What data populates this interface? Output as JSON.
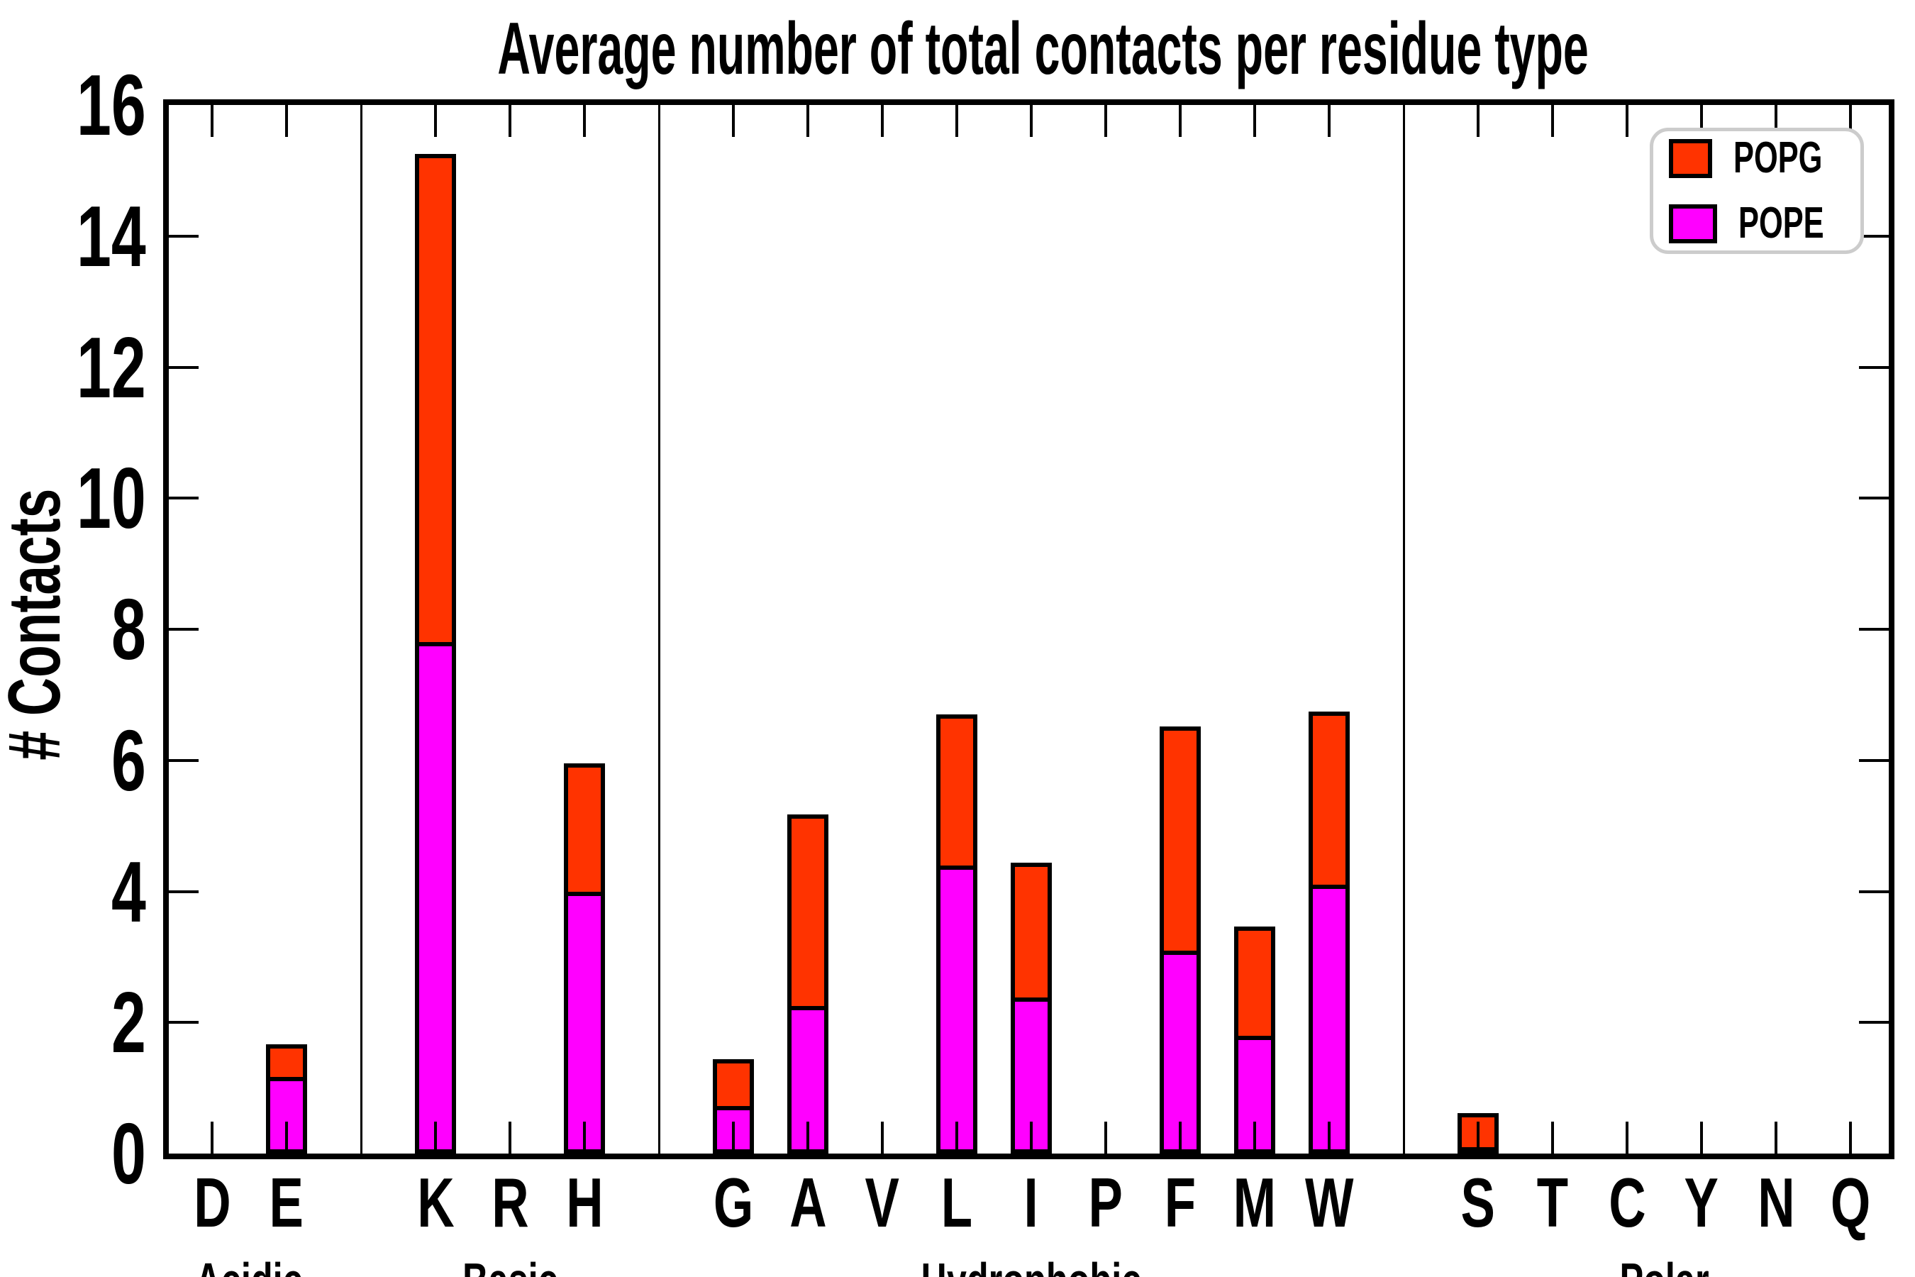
{
  "title": "Average number of total contacts per residue type",
  "ylabel": "# Contacts",
  "legend": {
    "entries": [
      {
        "label": "POPG",
        "color": "#ff3300"
      },
      {
        "label": "POPE",
        "color": "#ff00ff"
      }
    ],
    "position": "upper right"
  },
  "colors": {
    "popg_red": "#ff3300",
    "pope_magenta": "#ff00ff",
    "axis_black": "#000000",
    "legend_border_gray": "#cccccc",
    "background": "#ffffff"
  },
  "yticks": [
    "0",
    "2",
    "4",
    "6",
    "8",
    "10",
    "12",
    "14",
    "16"
  ],
  "chart_data": {
    "type": "bar",
    "stacked": true,
    "title": "Average number of total contacts per residue type",
    "xlabel": "",
    "ylabel": "# Contacts",
    "ylim": [
      0,
      16
    ],
    "ytick_step": 2,
    "grid": false,
    "legend_position": "upper right",
    "categories": [
      "D",
      "E",
      "K",
      "R",
      "H",
      "G",
      "A",
      "V",
      "L",
      "I",
      "P",
      "F",
      "M",
      "W",
      "S",
      "T",
      "C",
      "Y",
      "N",
      "Q"
    ],
    "groups": [
      {
        "label": "Acidic",
        "residues": [
          "D",
          "E"
        ]
      },
      {
        "label": "Basic",
        "residues": [
          "K",
          "R",
          "H"
        ]
      },
      {
        "label": "Hydrophobic",
        "residues": [
          "G",
          "A",
          "V",
          "L",
          "I",
          "P",
          "F",
          "M",
          "W"
        ]
      },
      {
        "label": "Polar",
        "residues": [
          "S",
          "T",
          "C",
          "Y",
          "N",
          "Q"
        ]
      }
    ],
    "series": [
      {
        "name": "POPE",
        "color": "#ff00ff",
        "values": [
          0,
          1.17,
          7.8,
          0,
          4.0,
          0.73,
          2.25,
          0,
          4.4,
          2.38,
          0,
          3.1,
          1.8,
          4.1,
          0.1,
          0,
          0,
          0,
          0,
          0
        ]
      },
      {
        "name": "POPG",
        "color": "#ff3300",
        "values": [
          0,
          0.5,
          7.45,
          0,
          1.95,
          0.71,
          2.92,
          0,
          2.3,
          2.06,
          0,
          3.42,
          1.66,
          2.64,
          0.52,
          0,
          0,
          0,
          0,
          0
        ]
      }
    ],
    "totals": [
      0,
      1.67,
      15.25,
      0,
      5.95,
      1.44,
      5.17,
      0,
      6.7,
      4.44,
      0,
      6.52,
      3.46,
      6.74,
      0.62,
      0,
      0,
      0,
      0,
      0
    ]
  }
}
